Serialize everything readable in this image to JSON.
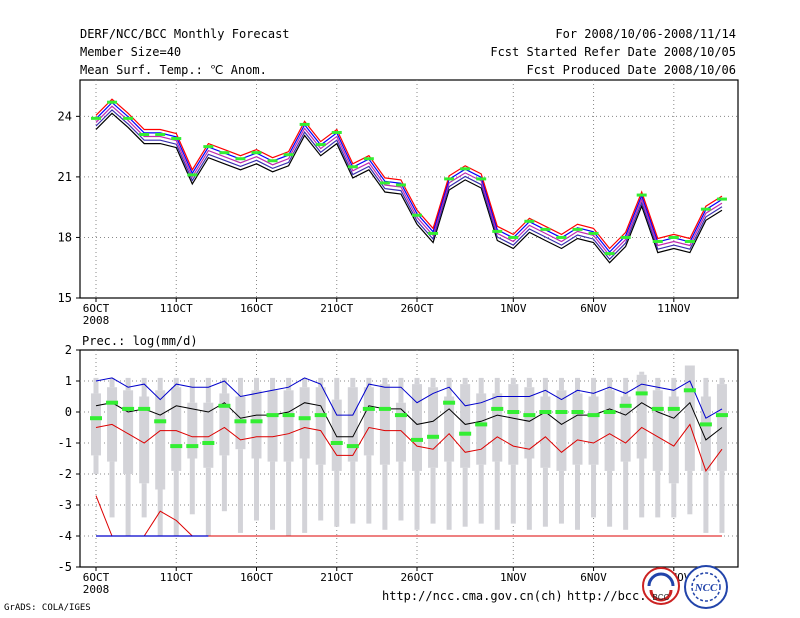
{
  "header": {
    "title": "DERF/NCC/BCC Monthly Forecast",
    "member_size": "Member Size=40",
    "variable": "Mean Surf. Temp.: ℃ Anom.",
    "period": "For 2008/10/06-2008/11/14",
    "started": "Fcst Started Refer Date 2008/10/05",
    "produced": "Fcst Produced Date 2008/10/06"
  },
  "colors": {
    "temp_lines": [
      "#000000",
      "#3a2fb0",
      "#c02ab0",
      "#0000ff",
      "#ff0000"
    ],
    "green_marker": "#33ee33",
    "box": "#d3d3d8",
    "upper": "#0000cc",
    "mean": "#000000",
    "lower": "#dd0000"
  },
  "chart_data": [
    {
      "type": "line",
      "title": "Mean Surf. Temp.: ℃ Anom.",
      "xlabel": "",
      "ylabel": "",
      "ylim": [
        15,
        25.8
      ],
      "yticks": [
        "15",
        "18",
        "21",
        "24"
      ],
      "ytick_values": [
        15,
        18,
        21,
        24
      ],
      "xticks": [
        "6OCT",
        "11OCT",
        "16OCT",
        "21OCT",
        "26OCT",
        "1NOV",
        "6NOV",
        "11NOV"
      ],
      "xtick_days": [
        1,
        6,
        11,
        16,
        21,
        27,
        32,
        37
      ],
      "first_tick_year": "2008",
      "grid": true,
      "series": [
        {
          "name": "ensemble_mean",
          "values": [
            23.7,
            24.5,
            23.8,
            23.0,
            23.0,
            22.8,
            21.0,
            22.3,
            22.0,
            21.7,
            22.0,
            21.6,
            21.9,
            23.4,
            22.4,
            23.0,
            21.3,
            21.7,
            20.6,
            20.5,
            19.0,
            18.1,
            20.7,
            21.2,
            20.8,
            18.2,
            17.8,
            18.6,
            18.2,
            17.8,
            18.3,
            18.1,
            17.1,
            17.9,
            19.9,
            17.6,
            17.8,
            17.6,
            19.2,
            19.7
          ]
        },
        {
          "name": "obs_green",
          "values": [
            23.9,
            24.7,
            23.9,
            23.1,
            23.1,
            22.9,
            21.1,
            22.5,
            22.2,
            21.9,
            22.2,
            21.8,
            22.1,
            23.6,
            22.6,
            23.2,
            21.5,
            21.9,
            20.7,
            20.6,
            19.1,
            18.2,
            20.9,
            21.4,
            20.9,
            18.3,
            18.0,
            18.8,
            18.4,
            18.0,
            18.4,
            18.2,
            17.2,
            18.0,
            20.1,
            17.8,
            18.0,
            17.8,
            19.4,
            19.9
          ]
        }
      ]
    },
    {
      "type": "box",
      "title": "Prec.: log(mm/d)",
      "xlabel": "",
      "ylabel": "",
      "ylim": [
        -5,
        2
      ],
      "yticks": [
        "-5",
        "-4",
        "-3",
        "-2",
        "-1",
        "0",
        "1",
        "2"
      ],
      "ytick_values": [
        -5,
        -4,
        -3,
        -2,
        -1,
        0,
        1,
        2
      ],
      "xticks": [
        "6OCT",
        "11OCT",
        "16OCT",
        "21OCT",
        "26OCT",
        "1NOV",
        "6NOV",
        "11NOV"
      ],
      "xtick_days": [
        1,
        6,
        11,
        16,
        21,
        27,
        32,
        37
      ],
      "first_tick_year": "2008",
      "grid": true,
      "boxes": {
        "whisker_low": [
          -2.0,
          -3.4,
          -4,
          -3.4,
          -4,
          -4,
          -3.3,
          -4,
          -3.2,
          -3.9,
          -3.5,
          -3.8,
          -4,
          -3.9,
          -3.5,
          -3.7,
          -3.6,
          -3.6,
          -3.8,
          -3.5,
          -3.8,
          -3.6,
          -3.8,
          -3.7,
          -3.6,
          -3.8,
          -3.6,
          -3.8,
          -3.7,
          -3.6,
          -3.8,
          -3.4,
          -3.7,
          -3.8,
          -3.4,
          -3.4,
          -3.4,
          -3.3,
          -3.9,
          -3.9
        ],
        "box_low": [
          -1.4,
          -1.6,
          -2.0,
          -2.3,
          -2.5,
          -1.9,
          -1.5,
          -1.8,
          -1.4,
          -1.2,
          -1.5,
          -1.6,
          -1.6,
          -1.5,
          -1.7,
          -1.9,
          -1.6,
          -1.4,
          -1.7,
          -1.6,
          -1.9,
          -1.8,
          -1.6,
          -1.8,
          -1.7,
          -1.6,
          -1.7,
          -1.5,
          -1.8,
          -1.9,
          -1.7,
          -1.7,
          -1.9,
          -1.6,
          -1.5,
          -1.9,
          -2.3,
          -1.9,
          -1.9,
          -1.9
        ],
        "box_high": [
          0.6,
          0.8,
          0.7,
          0.5,
          0.7,
          0.8,
          0.3,
          0.3,
          0.6,
          0.5,
          0.7,
          0.7,
          0.7,
          0.8,
          0.8,
          0.4,
          0.8,
          0.8,
          0.9,
          0.3,
          0.9,
          0.8,
          0.5,
          0.9,
          0.6,
          0.6,
          0.9,
          0.8,
          0.5,
          0.7,
          0.6,
          0.5,
          0.7,
          0.5,
          1.2,
          0.7,
          0.5,
          1.5,
          0.5,
          0.9
        ],
        "whisker_high": [
          1.1,
          1.1,
          1.1,
          1.1,
          1.1,
          1.1,
          1.1,
          1.1,
          1.1,
          1.1,
          1.1,
          1.1,
          1.1,
          1.1,
          1.1,
          1.1,
          1.1,
          1.1,
          1.1,
          1.1,
          1.1,
          1.1,
          1.1,
          1.1,
          1.1,
          1.1,
          1.1,
          1.1,
          1.1,
          1.1,
          1.1,
          1.1,
          1.1,
          1.1,
          1.3,
          1.1,
          1.1,
          1.5,
          1.1,
          1.1
        ]
      },
      "series": [
        {
          "name": "upper",
          "values": [
            1.0,
            1.1,
            0.8,
            0.9,
            0.4,
            0.9,
            0.8,
            0.8,
            1.0,
            0.5,
            0.6,
            0.7,
            0.8,
            1.1,
            0.9,
            -0.1,
            -0.1,
            0.9,
            0.8,
            0.8,
            0.3,
            0.6,
            0.8,
            0.2,
            0.3,
            0.5,
            0.5,
            0.5,
            0.7,
            0.4,
            0.7,
            0.6,
            0.8,
            0.6,
            0.9,
            0.8,
            0.7,
            1.0,
            -0.2,
            0.1
          ]
        },
        {
          "name": "mean",
          "values": [
            0.2,
            0.3,
            0.0,
            0.1,
            -0.1,
            0.2,
            0.1,
            0.0,
            0.3,
            -0.2,
            -0.1,
            -0.1,
            0.0,
            0.3,
            0.2,
            -0.8,
            -0.8,
            0.2,
            0.1,
            0.1,
            -0.4,
            -0.3,
            0.1,
            -0.4,
            -0.3,
            -0.1,
            -0.2,
            -0.3,
            0.0,
            -0.4,
            -0.1,
            -0.1,
            0.1,
            -0.1,
            0.3,
            0.0,
            -0.2,
            0.3,
            -0.9,
            -0.5
          ]
        },
        {
          "name": "lower",
          "values": [
            -0.5,
            -0.4,
            -0.7,
            -1.0,
            -0.6,
            -0.6,
            -0.8,
            -0.8,
            -0.5,
            -0.9,
            -0.8,
            -0.8,
            -0.7,
            -0.5,
            -0.6,
            -1.4,
            -1.4,
            -0.5,
            -0.6,
            -0.6,
            -1.1,
            -1.2,
            -0.7,
            -1.3,
            -1.2,
            -0.8,
            -1.1,
            -1.2,
            -0.8,
            -1.3,
            -0.9,
            -1.0,
            -0.7,
            -1.0,
            -0.5,
            -0.8,
            -1.1,
            -0.4,
            -1.9,
            -1.2
          ]
        },
        {
          "name": "tail",
          "values": [
            -2.7,
            -4,
            -4,
            -4,
            -3.2,
            -3.5,
            -4,
            -4,
            -4,
            -4,
            -4,
            -4,
            -4,
            -4,
            -4,
            -4,
            -4,
            -4,
            -4,
            -4,
            -4,
            -4,
            -4,
            -4,
            -4,
            -4,
            -4,
            -4,
            -4,
            -4,
            -4,
            -4,
            -4,
            -4,
            -4,
            -4,
            -4,
            -4,
            -4,
            -4
          ]
        },
        {
          "name": "obs_green",
          "values": [
            -0.2,
            0.3,
            0.1,
            0.1,
            -0.3,
            -1.1,
            -1.1,
            -1.0,
            0.2,
            -0.3,
            -0.3,
            -0.1,
            -0.1,
            -0.2,
            -0.1,
            -1.0,
            -1.1,
            0.1,
            0.1,
            -0.1,
            -0.9,
            -0.8,
            0.3,
            -0.7,
            -0.4,
            0.1,
            0.0,
            -0.1,
            0.0,
            0.0,
            0.0,
            -0.1,
            0.0,
            0.2,
            0.6,
            0.1,
            0.1,
            0.7,
            -0.4,
            -0.1
          ]
        }
      ]
    }
  ],
  "footer": {
    "url1": "http://ncc.cma.gov.cn(ch)",
    "url2": "http://bcc.",
    "credit": "GrADS: COLA/IGES",
    "logo1": "BCC",
    "logo2": "NCC"
  }
}
